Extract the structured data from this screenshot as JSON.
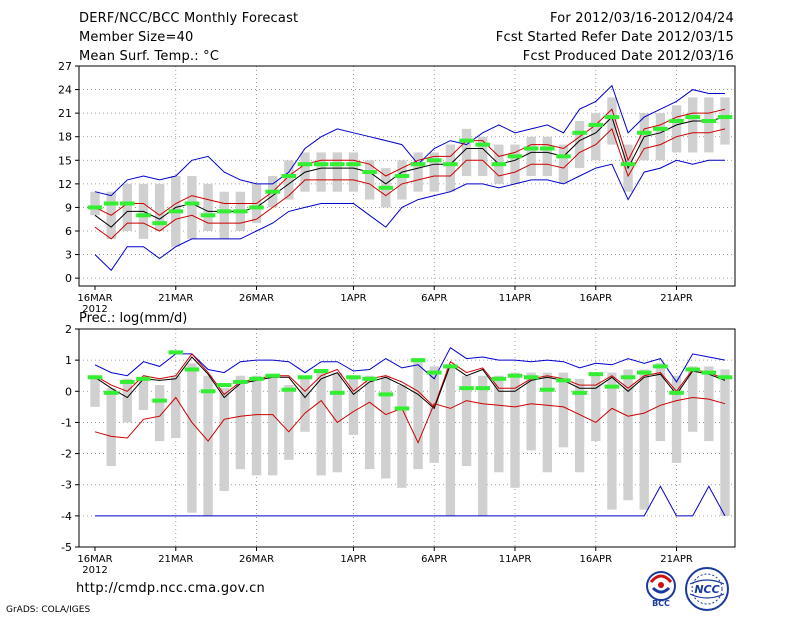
{
  "header": {
    "title": "DERF/NCC/BCC Monthly Forecast",
    "member_size": "Member Size=40",
    "variable": "Mean Surf. Temp.: °C",
    "for_period": "For 2012/03/16-2012/04/24",
    "fcst_started": "Fcst Started Refer Date 2012/03/15",
    "fcst_produced": "Fcst Produced Date 2012/03/16"
  },
  "footer": {
    "url": "http://cmdp.ncc.cma.gov.cn",
    "credit": "GrADS: COLA/IGES",
    "logo_left": "BCC",
    "logo_right": "NCC"
  },
  "colors": {
    "ensemble_max_min": "#0000cc",
    "spread_band": "#cc0000",
    "ensemble_mean": "#000000",
    "observation_marker": "#33ee33",
    "bars": "#d0d0d0",
    "grid": "#888888"
  },
  "chart_data": [
    {
      "type": "line",
      "title": "Mean Surf. Temp.: °C",
      "x_tick_labels": [
        "16MAR",
        "21MAR",
        "26MAR",
        "1APR",
        "6APR",
        "11APR",
        "16APR",
        "21APR"
      ],
      "x_tick_day_index": [
        1,
        6,
        11,
        17,
        22,
        27,
        32,
        37
      ],
      "x_year_label": "2012",
      "ylim": [
        -1,
        27
      ],
      "yticks": [
        0,
        3,
        6,
        9,
        12,
        15,
        18,
        21,
        24,
        27
      ],
      "days": 40,
      "series": [
        {
          "name": "ensemble max",
          "values": [
            11,
            10.5,
            12.5,
            13,
            12.5,
            13,
            15,
            15.5,
            13.5,
            12.5,
            12,
            12,
            13.5,
            16.5,
            18,
            19,
            18.5,
            18,
            17.5,
            17,
            14.5,
            16.5,
            17.5,
            17,
            18.5,
            19.5,
            18.5,
            19,
            19.5,
            18.5,
            21.5,
            22.5,
            24.5,
            18.5,
            20.5,
            21.5,
            22.5,
            24,
            23.5,
            23.5
          ]
        },
        {
          "name": "mean + spread",
          "values": [
            9,
            8,
            9.5,
            9.5,
            8,
            9.5,
            10.5,
            10,
            9.5,
            9.5,
            9.5,
            11,
            13,
            14.5,
            15,
            15,
            15,
            14.5,
            13,
            14,
            15,
            15.5,
            15.5,
            17.5,
            17.5,
            15.5,
            16,
            17,
            17,
            16.5,
            18,
            19.5,
            21.5,
            15,
            19,
            19.5,
            20.5,
            21,
            21,
            21.5
          ]
        },
        {
          "name": "ensemble mean",
          "values": [
            8,
            6.5,
            8.5,
            8.5,
            7.5,
            9,
            9.5,
            8.5,
            8.5,
            8.5,
            9,
            10.5,
            12,
            13.5,
            14,
            14,
            14,
            13.5,
            12,
            13.5,
            14,
            14.5,
            14.5,
            16.5,
            16.5,
            14.5,
            15,
            16,
            16,
            15.5,
            17.5,
            18.5,
            20.5,
            14,
            18,
            18.5,
            19.5,
            20,
            20,
            20.5
          ]
        },
        {
          "name": "mean - spread",
          "values": [
            6.5,
            5,
            7,
            7,
            6,
            7.5,
            8,
            7,
            7,
            7,
            7.5,
            9,
            10.5,
            12.5,
            12.5,
            12.5,
            12.5,
            12,
            10.5,
            12,
            12.5,
            13,
            13,
            15,
            15,
            13,
            13.5,
            14.5,
            14.5,
            14,
            16,
            17,
            19,
            13,
            16.5,
            17,
            18,
            18.5,
            18.5,
            19
          ]
        },
        {
          "name": "ensemble min",
          "values": [
            3,
            1,
            4,
            4,
            2.5,
            4,
            5,
            5,
            5,
            5,
            6,
            7,
            8.5,
            9,
            9.5,
            9.5,
            9.5,
            8,
            6.5,
            9,
            10,
            10.5,
            11,
            12,
            12,
            11.5,
            12,
            12.5,
            12.5,
            12,
            13,
            14,
            14.5,
            10,
            13.5,
            14,
            15,
            14.5,
            15,
            15
          ]
        }
      ],
      "observation_markers": [
        9,
        9.5,
        9.5,
        8,
        7,
        8.5,
        9.5,
        8,
        8.5,
        8.5,
        9,
        11,
        13,
        14.5,
        14.5,
        14.5,
        14.5,
        13.5,
        11.5,
        13,
        14.5,
        15,
        14.5,
        17.5,
        17,
        14.5,
        15.5,
        16.5,
        16.5,
        15.5,
        18.5,
        19.5,
        20.5,
        14.5,
        18.5,
        19,
        20,
        20.5,
        20,
        20.5
      ],
      "bars": [
        [
          8,
          11
        ],
        [
          5,
          11
        ],
        [
          6,
          12
        ],
        [
          5,
          12
        ],
        [
          6,
          12
        ],
        [
          4,
          13
        ],
        [
          5,
          13
        ],
        [
          6,
          12
        ],
        [
          5,
          11
        ],
        [
          6,
          11
        ],
        [
          7,
          12
        ],
        [
          9,
          13
        ],
        [
          10,
          15
        ],
        [
          11,
          16
        ],
        [
          11,
          16
        ],
        [
          11,
          16
        ],
        [
          11,
          16
        ],
        [
          10,
          15
        ],
        [
          9,
          14
        ],
        [
          10,
          15
        ],
        [
          11,
          16
        ],
        [
          11,
          16
        ],
        [
          11,
          17
        ],
        [
          13,
          19
        ],
        [
          13,
          18
        ],
        [
          12,
          17
        ],
        [
          12,
          17
        ],
        [
          13,
          18
        ],
        [
          13,
          18
        ],
        [
          12,
          17
        ],
        [
          14,
          20
        ],
        [
          15,
          21
        ],
        [
          17,
          23
        ],
        [
          11,
          17
        ],
        [
          15,
          21
        ],
        [
          15,
          21
        ],
        [
          16,
          22
        ],
        [
          16,
          23
        ],
        [
          16,
          23
        ],
        [
          17,
          23
        ]
      ]
    },
    {
      "type": "line",
      "title": "Prec.: log(mm/d)",
      "x_tick_labels": [
        "16MAR",
        "21MAR",
        "26MAR",
        "1APR",
        "6APR",
        "11APR",
        "16APR",
        "21APR"
      ],
      "x_tick_day_index": [
        1,
        6,
        11,
        17,
        22,
        27,
        32,
        37
      ],
      "x_year_label": "2012",
      "ylim": [
        -5,
        2
      ],
      "yticks": [
        -5,
        -4,
        -3,
        -2,
        -1,
        0,
        1,
        2
      ],
      "days": 40,
      "series": [
        {
          "name": "ensemble max",
          "values": [
            0.85,
            0.6,
            0.5,
            0.95,
            0.8,
            1.2,
            1.2,
            0.7,
            0.6,
            0.95,
            1.0,
            1.0,
            0.95,
            0.6,
            0.95,
            0.95,
            0.65,
            0.7,
            1.05,
            0.75,
            0.85,
            0.4,
            1.4,
            1.05,
            1.1,
            1.0,
            1.0,
            0.95,
            1.0,
            0.95,
            0.75,
            0.9,
            0.85,
            1.05,
            0.9,
            1.05,
            0.3,
            1.2,
            1.1,
            1.0
          ]
        },
        {
          "name": "mean + spread",
          "values": [
            0.5,
            0.2,
            0.0,
            0.5,
            0.4,
            0.5,
            1.2,
            0.6,
            -0.1,
            0.3,
            0.4,
            0.5,
            0.5,
            0.0,
            0.5,
            0.7,
            0.0,
            0.4,
            0.5,
            0.3,
            0.0,
            -0.5,
            0.95,
            0.6,
            0.75,
            0.1,
            0.1,
            0.4,
            0.5,
            0.4,
            0.2,
            0.2,
            0.5,
            0.1,
            0.5,
            0.6,
            0.0,
            0.7,
            0.6,
            0.4
          ]
        },
        {
          "name": "ensemble mean",
          "values": [
            0.45,
            0.1,
            -0.2,
            0.4,
            0.35,
            0.4,
            1.1,
            0.55,
            -0.2,
            0.25,
            0.35,
            0.45,
            0.45,
            -0.2,
            0.4,
            0.6,
            -0.1,
            0.3,
            0.45,
            0.2,
            -0.1,
            -0.55,
            0.85,
            0.5,
            0.7,
            0.0,
            0.0,
            0.35,
            0.45,
            0.35,
            0.1,
            0.1,
            0.45,
            0.0,
            0.45,
            0.55,
            -0.1,
            0.65,
            0.55,
            0.35
          ]
        },
        {
          "name": "mean - spread",
          "values": [
            -1.3,
            -1.45,
            -1.5,
            -0.9,
            -0.8,
            -0.2,
            -1.0,
            -1.6,
            -0.9,
            -0.8,
            -0.75,
            -0.75,
            -1.3,
            -0.7,
            -0.3,
            -1.0,
            -0.65,
            -0.35,
            -0.75,
            -0.55,
            -1.65,
            -0.4,
            -0.55,
            -0.3,
            -0.4,
            -0.45,
            -0.5,
            -0.4,
            -0.45,
            -0.5,
            -0.75,
            -1.0,
            -0.55,
            -0.8,
            -0.7,
            -0.45,
            -0.3,
            -0.2,
            -0.25,
            -0.4
          ]
        },
        {
          "name": "ensemble min",
          "values": [
            -4,
            -4,
            -4,
            -4,
            -4,
            -4,
            -4,
            -4,
            -4,
            -4,
            -4,
            -4,
            -4,
            -4,
            -4,
            -4,
            -4,
            -4,
            -4,
            -4,
            -4,
            -4,
            -4,
            -4,
            -4,
            -4,
            -4,
            -4,
            -4,
            -4,
            -4,
            -4,
            -4,
            -4,
            -4,
            -3.05,
            -4,
            -4,
            -3.05,
            -4
          ]
        }
      ],
      "observation_markers": [
        0.45,
        -0.05,
        0.3,
        0.4,
        -0.3,
        1.25,
        0.7,
        0.0,
        0.2,
        0.3,
        0.4,
        0.5,
        0.05,
        0.45,
        0.65,
        -0.05,
        0.45,
        0.4,
        -0.1,
        -0.55,
        1.0,
        0.6,
        0.8,
        0.1,
        0.1,
        0.4,
        0.5,
        0.45,
        0.05,
        0.35,
        -0.05,
        0.55,
        0.15,
        0.45,
        0.6,
        0.8,
        -0.05,
        0.7,
        0.6,
        0.45
      ],
      "bars": [
        [
          -0.5,
          0.5
        ],
        [
          -2.4,
          0.1
        ],
        [
          -1.0,
          0.4
        ],
        [
          -0.6,
          0.4
        ],
        [
          -1.6,
          0.2
        ],
        [
          -1.5,
          0.5
        ],
        [
          -3.9,
          0.9
        ],
        [
          -4.0,
          0.5
        ],
        [
          -3.2,
          0.1
        ],
        [
          -2.5,
          0.5
        ],
        [
          -2.7,
          0.5
        ],
        [
          -2.7,
          0.5
        ],
        [
          -2.2,
          0.2
        ],
        [
          -1.3,
          0.5
        ],
        [
          -2.7,
          0.7
        ],
        [
          -2.6,
          0.6
        ],
        [
          -1.4,
          0.5
        ],
        [
          -2.5,
          0.5
        ],
        [
          -2.8,
          0.5
        ],
        [
          -3.1,
          0.2
        ],
        [
          -2.5,
          1.0
        ],
        [
          -2.3,
          0.8
        ],
        [
          -4.0,
          0.8
        ],
        [
          -2.4,
          0.5
        ],
        [
          -4.0,
          0.5
        ],
        [
          -2.6,
          0.5
        ],
        [
          -3.1,
          0.6
        ],
        [
          -1.9,
          0.6
        ],
        [
          -2.6,
          0.6
        ],
        [
          -1.8,
          0.6
        ],
        [
          -2.6,
          0.4
        ],
        [
          -1.6,
          0.6
        ],
        [
          -3.8,
          0.6
        ],
        [
          -3.5,
          0.7
        ],
        [
          -3.8,
          0.7
        ],
        [
          -1.6,
          0.9
        ],
        [
          -2.3,
          0.5
        ],
        [
          -1.3,
          0.8
        ],
        [
          -1.6,
          0.8
        ],
        [
          -4.0,
          0.7
        ]
      ]
    }
  ]
}
